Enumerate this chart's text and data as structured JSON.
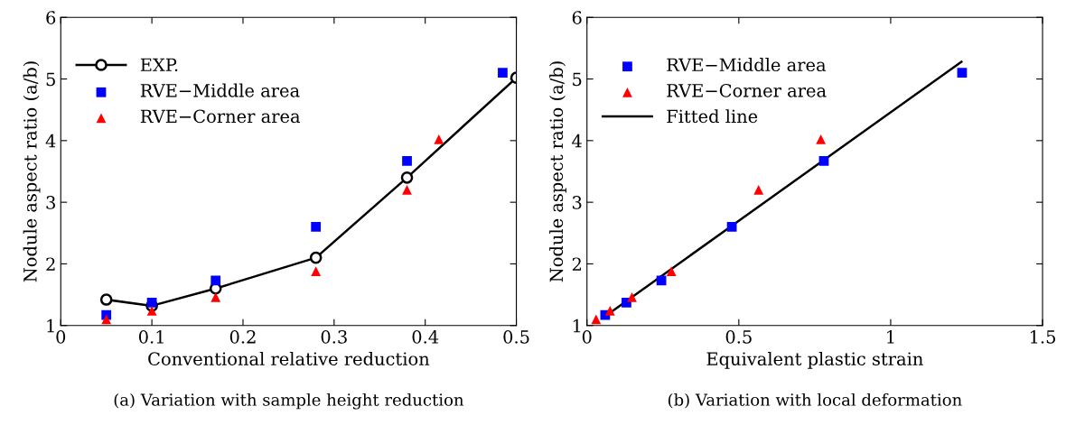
{
  "chart_data": [
    {
      "type": "scatter",
      "xlabel": "Conventional relative reduction",
      "ylabel": "Nodule aspect ratio (a/b)",
      "xlim": [
        0,
        0.5
      ],
      "ylim": [
        1,
        6
      ],
      "xticks": [
        0,
        0.1,
        0.2,
        0.3,
        0.4,
        0.5
      ],
      "yticks": [
        1,
        2,
        3,
        4,
        5,
        6
      ],
      "grid": false,
      "legend": "top left",
      "annotations": [
        "(a) Variation with sample height reduction"
      ],
      "series": [
        {
          "name": "EXP.",
          "type": "line",
          "marker": "circle",
          "line_style": "solid",
          "color": "#000000",
          "x": [
            0.05,
            0.1,
            0.17,
            0.28,
            0.38,
            0.5
          ],
          "values": [
            1.42,
            1.32,
            1.6,
            2.1,
            3.4,
            5.02
          ]
        },
        {
          "name": "RVE−Middle area",
          "marker": "square",
          "color": "#0000ff",
          "x": [
            0.05,
            0.1,
            0.17,
            0.28,
            0.38,
            0.485
          ],
          "values": [
            1.17,
            1.37,
            1.73,
            2.6,
            3.67,
            5.1
          ]
        },
        {
          "name": "RVE−Corner area",
          "marker": "triangle",
          "color": "#ff0000",
          "x": [
            0.05,
            0.1,
            0.17,
            0.28,
            0.38,
            0.415
          ],
          "values": [
            1.1,
            1.24,
            1.46,
            1.88,
            3.2,
            4.02
          ]
        }
      ]
    },
    {
      "type": "scatter",
      "xlabel": "Equivalent plastic strain",
      "ylabel": "Nodule aspect ratio (a/b)",
      "xlim": [
        0,
        1.5
      ],
      "ylim": [
        1,
        6
      ],
      "xticks": [
        0,
        0.5,
        1,
        1.5
      ],
      "yticks": [
        1,
        2,
        3,
        4,
        5,
        6
      ],
      "grid": false,
      "legend": "top left",
      "annotations": [
        "(b) Variation with local deformation"
      ],
      "series": [
        {
          "name": "RVE−Middle area",
          "marker": "square",
          "color": "#0000ff",
          "x": [
            0.06,
            0.13,
            0.245,
            0.477,
            0.78,
            1.235
          ],
          "values": [
            1.17,
            1.37,
            1.73,
            2.6,
            3.67,
            5.1
          ]
        },
        {
          "name": "RVE−Corner area",
          "marker": "triangle",
          "color": "#ff0000",
          "x": [
            0.03,
            0.076,
            0.148,
            0.278,
            0.565,
            0.77
          ],
          "values": [
            1.1,
            1.24,
            1.46,
            1.88,
            3.2,
            4.02
          ]
        },
        {
          "name": "Fitted line",
          "type": "line",
          "marker": "none",
          "line_style": "solid",
          "color": "#000000",
          "x": [
            0.06,
            1.233
          ],
          "values": [
            1.15,
            5.28
          ]
        }
      ]
    }
  ]
}
